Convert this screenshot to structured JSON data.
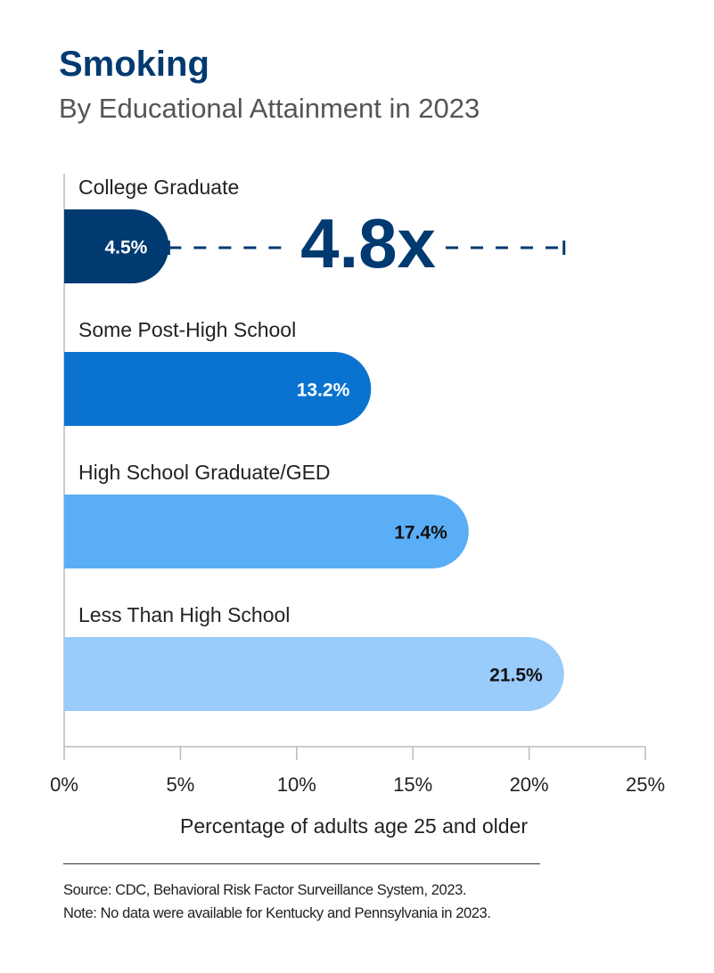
{
  "chart_data": {
    "type": "bar",
    "orientation": "horizontal",
    "title": "Smoking",
    "subtitle": "By Educational Attainment in 2023",
    "categories": [
      "College Graduate",
      "Some Post-High School",
      "High School Graduate/GED",
      "Less Than High School"
    ],
    "values": [
      4.5,
      13.2,
      17.4,
      21.5
    ],
    "data_labels": [
      "4.5%",
      "13.2%",
      "17.4%",
      "21.5%"
    ],
    "colors": [
      "#003a70",
      "#0a73d0",
      "#5aaef5",
      "#99cbfb"
    ],
    "label_colors": [
      "#ffffff",
      "#ffffff",
      "#111111",
      "#111111"
    ],
    "xlabel": "Percentage of adults age 25 and older",
    "xlim": [
      0,
      25
    ],
    "xticks": [
      0,
      5,
      10,
      15,
      20,
      25
    ],
    "xtick_labels": [
      "0%",
      "5%",
      "10%",
      "15%",
      "20%",
      "25%"
    ],
    "grid": false,
    "annotation": {
      "text": "4.8x",
      "from": 4.5,
      "to": 21.5,
      "color": "#003a70"
    }
  },
  "footer": {
    "source": "Source: CDC, Behavioral Risk Factor Surveillance System, 2023.",
    "note": "Note: No data were available for Kentucky and Pennsylvania in 2023."
  }
}
